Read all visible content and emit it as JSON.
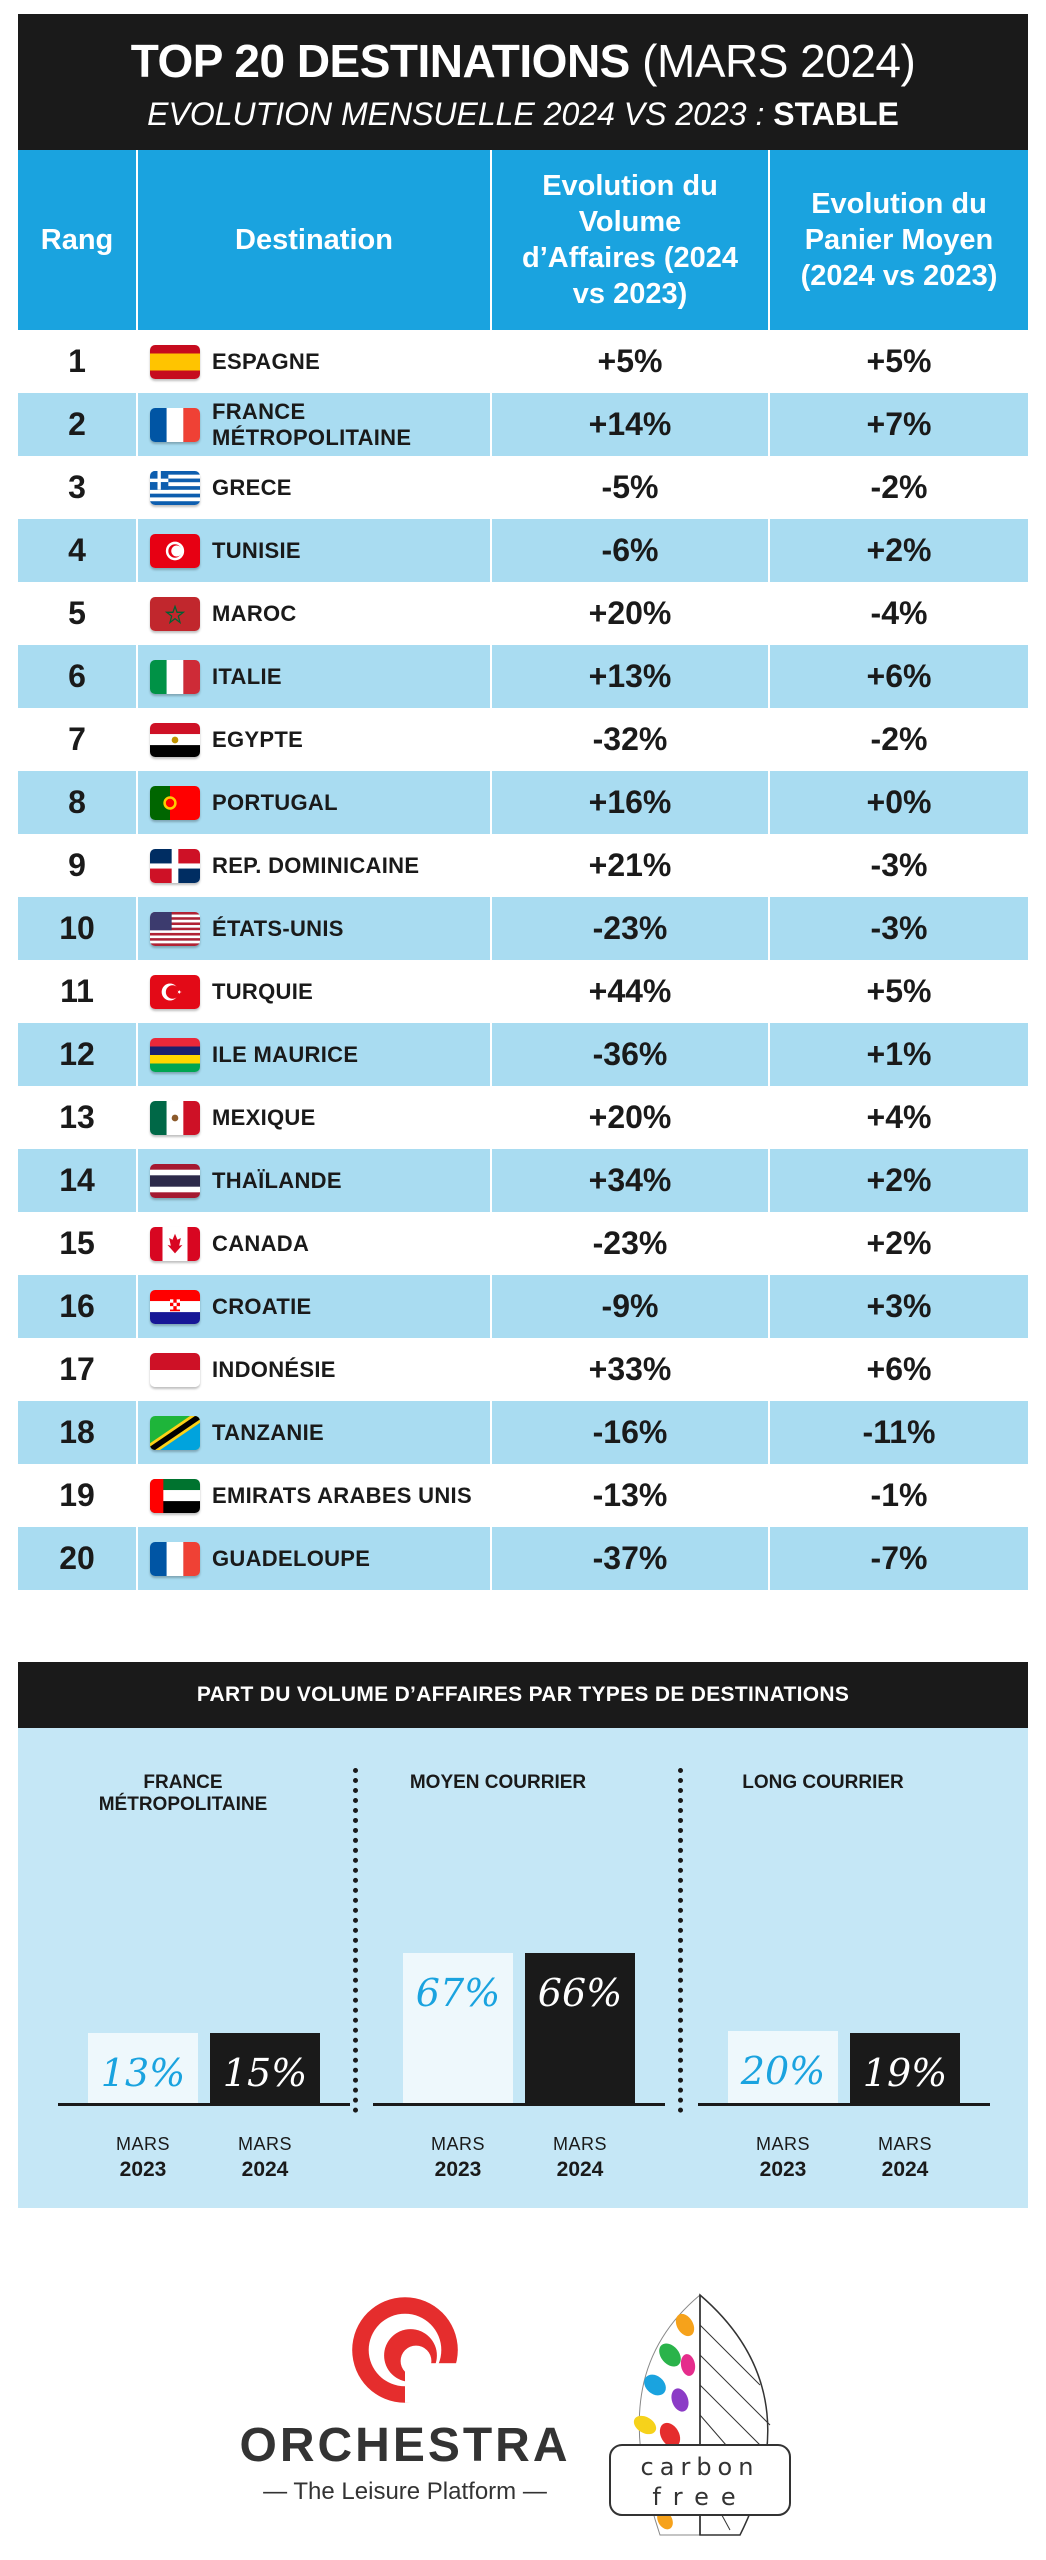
{
  "header": {
    "title_bold": "TOP 20 DESTINATIONS",
    "title_light": "(MARS 2024)",
    "subtitle": "EVOLUTION MENSUELLE 2024 VS 2023 :",
    "subtitle_status": "STABLE"
  },
  "table": {
    "columns": {
      "rank": "Rang",
      "destination": "Destination",
      "volume": "Evolution du Volume d’Affaires (2024 vs 2023)",
      "panier": "Evolution du Panier Moyen (2024 vs 2023)"
    },
    "rows": [
      {
        "rank": "1",
        "destination": "ESPAGNE",
        "volume": "+5%",
        "panier": "+5%",
        "flag": "spain-flag-icon"
      },
      {
        "rank": "2",
        "destination": "FRANCE MÉTROPOLITAINE",
        "volume": "+14%",
        "panier": "+7%",
        "flag": "france-flag-icon"
      },
      {
        "rank": "3",
        "destination": "GRECE",
        "volume": "-5%",
        "panier": "-2%",
        "flag": "greece-flag-icon"
      },
      {
        "rank": "4",
        "destination": "TUNISIE",
        "volume": "-6%",
        "panier": "+2%",
        "flag": "tunisia-flag-icon"
      },
      {
        "rank": "5",
        "destination": "MAROC",
        "volume": "+20%",
        "panier": "-4%",
        "flag": "morocco-flag-icon"
      },
      {
        "rank": "6",
        "destination": "ITALIE",
        "volume": "+13%",
        "panier": "+6%",
        "flag": "italy-flag-icon"
      },
      {
        "rank": "7",
        "destination": "EGYPTE",
        "volume": "-32%",
        "panier": "-2%",
        "flag": "egypt-flag-icon"
      },
      {
        "rank": "8",
        "destination": "PORTUGAL",
        "volume": "+16%",
        "panier": "+0%",
        "flag": "portugal-flag-icon"
      },
      {
        "rank": "9",
        "destination": "REP. DOMINICAINE",
        "volume": "+21%",
        "panier": "-3%",
        "flag": "dominican-republic-flag-icon"
      },
      {
        "rank": "10",
        "destination": "ÉTATS-UNIS",
        "volume": "-23%",
        "panier": "-3%",
        "flag": "usa-flag-icon"
      },
      {
        "rank": "11",
        "destination": "TURQUIE",
        "volume": "+44%",
        "panier": "+5%",
        "flag": "turkey-flag-icon"
      },
      {
        "rank": "12",
        "destination": "ILE MAURICE",
        "volume": "-36%",
        "panier": "+1%",
        "flag": "mauritius-flag-icon"
      },
      {
        "rank": "13",
        "destination": "MEXIQUE",
        "volume": "+20%",
        "panier": "+4%",
        "flag": "mexico-flag-icon"
      },
      {
        "rank": "14",
        "destination": "THAÏLANDE",
        "volume": "+34%",
        "panier": "+2%",
        "flag": "thailand-flag-icon"
      },
      {
        "rank": "15",
        "destination": "CANADA",
        "volume": "-23%",
        "panier": "+2%",
        "flag": "canada-flag-icon"
      },
      {
        "rank": "16",
        "destination": "CROATIE",
        "volume": "-9%",
        "panier": "+3%",
        "flag": "croatia-flag-icon"
      },
      {
        "rank": "17",
        "destination": "INDONÉSIE",
        "volume": "+33%",
        "panier": "+6%",
        "flag": "indonesia-flag-icon"
      },
      {
        "rank": "18",
        "destination": "TANZANIE",
        "volume": "-16%",
        "panier": "-11%",
        "flag": "tanzania-flag-icon"
      },
      {
        "rank": "19",
        "destination": "EMIRATS ARABES UNIS",
        "volume": "-13%",
        "panier": "-1%",
        "flag": "uae-flag-icon"
      },
      {
        "rank": "20",
        "destination": "GUADELOUPE",
        "volume": "-37%",
        "panier": "-7%",
        "flag": "france-flag-icon"
      }
    ]
  },
  "chart_data": {
    "type": "bar",
    "title": "PART DU VOLUME D’AFFAIRES PAR TYPES DE DESTINATIONS",
    "groups": [
      {
        "label": "FRANCE MÉTROPOLITAINE",
        "values": [
          13,
          15
        ],
        "value_labels": [
          "13%",
          "15%"
        ]
      },
      {
        "label": "MOYEN COURRIER",
        "values": [
          67,
          66
        ],
        "value_labels": [
          "67%",
          "66%"
        ]
      },
      {
        "label": "LONG COURRIER",
        "values": [
          20,
          19
        ],
        "value_labels": [
          "20%",
          "19%"
        ]
      }
    ],
    "categories": [
      {
        "month": "MARS",
        "year": "2023"
      },
      {
        "month": "MARS",
        "year": "2024"
      }
    ],
    "colors": {
      "2023": "#eef8fc",
      "2024": "#1a1a1a",
      "label_2023": "#1aa3df"
    },
    "ylim": [
      0,
      100
    ]
  },
  "logos": {
    "orchestra_name": "ORCHESTRA",
    "orchestra_tagline": "— The Leisure Platform —",
    "carbon_free_line1": "carbon",
    "carbon_free_line2": "free"
  },
  "colors": {
    "accent": "#1aa3df",
    "row_alt": "#a9dcf1",
    "dark": "#1a1a1a",
    "panel": "#c5e7f6",
    "orchestra_red": "#e52d2d"
  }
}
